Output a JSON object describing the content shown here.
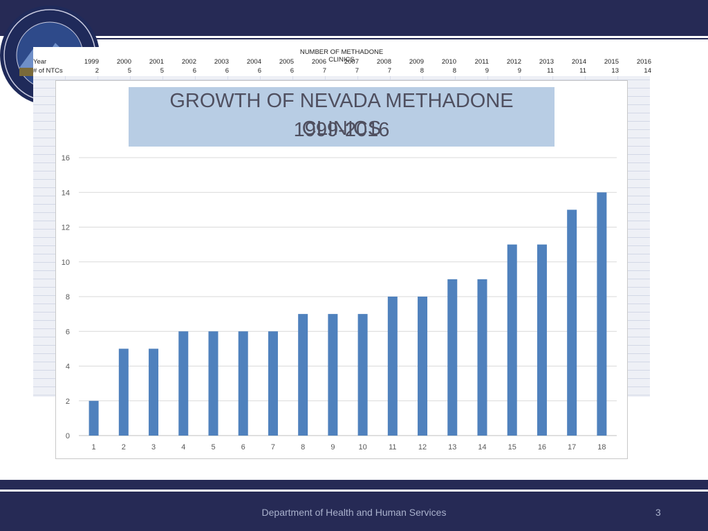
{
  "sheet": {
    "title": "NUMBER OF METHADONE CLINICS",
    "row_labels": [
      "Year",
      "# of NTCs"
    ],
    "years": [
      "1999",
      "2000",
      "2001",
      "2002",
      "2003",
      "2004",
      "2005",
      "2006",
      "2007",
      "2008",
      "2009",
      "2010",
      "2011",
      "2012",
      "2013",
      "2014",
      "2015",
      "2016"
    ],
    "counts": [
      "2",
      "5",
      "5",
      "6",
      "6",
      "6",
      "6",
      "7",
      "7",
      "7",
      "8",
      "8",
      "9",
      "9",
      "11",
      "11",
      "13",
      "14"
    ]
  },
  "chart_data": {
    "type": "bar",
    "title_line1": "GROWTH OF NEVADA METHADONE CLINICS",
    "title_line2": "1999-2016",
    "categories": [
      "1",
      "2",
      "3",
      "4",
      "5",
      "6",
      "7",
      "8",
      "9",
      "10",
      "11",
      "12",
      "13",
      "14",
      "15",
      "16",
      "17",
      "18"
    ],
    "values": [
      2,
      5,
      5,
      6,
      6,
      6,
      6,
      7,
      7,
      7,
      8,
      8,
      9,
      9,
      11,
      11,
      13,
      14
    ],
    "ylim": [
      0,
      16
    ],
    "yticks": [
      0,
      2,
      4,
      6,
      8,
      10,
      12,
      14,
      16
    ],
    "grid": true,
    "bar_color": "#4f81bd"
  },
  "footer": {
    "text": "Department of Health and Human Services",
    "page_number": "3"
  },
  "colors": {
    "header": "#262a55",
    "title_box": "#b8cde4"
  }
}
